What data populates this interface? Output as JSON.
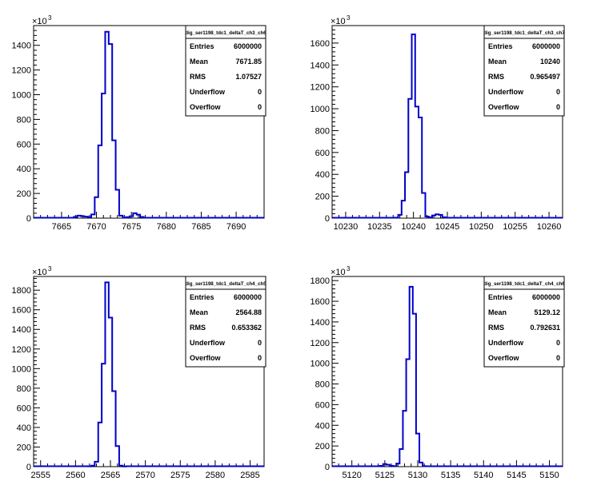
{
  "chart_data": [
    {
      "type": "bar",
      "title": "",
      "xlabel": "",
      "ylabel": "",
      "exponent_label": "×10³",
      "color": "#0000cc",
      "xlim": [
        7661,
        7694
      ],
      "ylim": [
        0,
        1560
      ],
      "xticks": [
        7665,
        7670,
        7675,
        7680,
        7685,
        7690
      ],
      "yticks": [
        0,
        200,
        400,
        600,
        800,
        1000,
        1200,
        1400
      ],
      "bin_width": 0.5,
      "x": [
        7666.5,
        7667.0,
        7667.5,
        7668.0,
        7668.5,
        7669.0,
        7669.5,
        7670.0,
        7670.5,
        7671.0,
        7671.5,
        7672.0,
        7672.5,
        7673.0,
        7673.5,
        7674.0,
        7674.5,
        7675.0,
        7675.5,
        7676.0,
        7676.5
      ],
      "values": [
        3,
        10,
        20,
        16,
        12,
        8,
        30,
        170,
        590,
        1010,
        1510,
        1410,
        630,
        230,
        20,
        5,
        8,
        15,
        40,
        28,
        10
      ],
      "stats": {
        "name": "dig_ser1198_tdc1_deltaT_ch3_ch6",
        "rows": [
          {
            "label": "Entries",
            "value": "6000000"
          },
          {
            "label": "Mean",
            "value": "7671.85"
          },
          {
            "label": "RMS",
            "value": "1.07527"
          },
          {
            "label": "Underflow",
            "value": "0"
          },
          {
            "label": "Overflow",
            "value": "0"
          }
        ]
      }
    },
    {
      "type": "bar",
      "title": "",
      "xlabel": "",
      "ylabel": "",
      "exponent_label": "×10³",
      "color": "#0000cc",
      "xlim": [
        10228,
        10262
      ],
      "ylim": [
        0,
        1760
      ],
      "xticks": [
        10230,
        10235,
        10240,
        10245,
        10250,
        10255,
        10260
      ],
      "yticks": [
        0,
        200,
        400,
        600,
        800,
        1000,
        1200,
        1400,
        1600
      ],
      "bin_width": 0.5,
      "x": [
        10237.5,
        10238.0,
        10238.5,
        10239.0,
        10239.5,
        10240.0,
        10240.5,
        10241.0,
        10241.5,
        10242.0,
        10242.5,
        10243.0,
        10243.5,
        10244.0,
        10244.5
      ],
      "values": [
        5,
        30,
        160,
        420,
        1090,
        1680,
        1020,
        920,
        230,
        15,
        8,
        25,
        35,
        30,
        8
      ],
      "stats": {
        "name": "dig_ser1198_tdc1_deltaT_ch3_ch7",
        "rows": [
          {
            "label": "Entries",
            "value": "6000000"
          },
          {
            "label": "Mean",
            "value": "10240"
          },
          {
            "label": "RMS",
            "value": "0.965497"
          },
          {
            "label": "Underflow",
            "value": "0"
          },
          {
            "label": "Overflow",
            "value": "0"
          }
        ]
      }
    },
    {
      "type": "bar",
      "title": "",
      "xlabel": "",
      "ylabel": "",
      "exponent_label": "×10³",
      "color": "#0000cc",
      "xlim": [
        2554,
        2587
      ],
      "ylim": [
        0,
        1940
      ],
      "xticks": [
        2555,
        2560,
        2565,
        2570,
        2575,
        2580,
        2585
      ],
      "yticks": [
        0,
        200,
        400,
        600,
        800,
        1000,
        1200,
        1400,
        1600,
        1800
      ],
      "bin_width": 0.5,
      "x": [
        2562.0,
        2562.5,
        2563.0,
        2563.5,
        2564.0,
        2564.5,
        2565.0,
        2565.5,
        2566.0,
        2566.5,
        2567.0
      ],
      "values": [
        3,
        10,
        50,
        450,
        1050,
        1880,
        1520,
        770,
        210,
        10,
        2
      ],
      "stats": {
        "name": "dig_ser1198_tdc1_deltaT_ch4_ch5",
        "rows": [
          {
            "label": "Entries",
            "value": "6000000"
          },
          {
            "label": "Mean",
            "value": "2564.88"
          },
          {
            "label": "RMS",
            "value": "0.653362"
          },
          {
            "label": "Underflow",
            "value": "0"
          },
          {
            "label": "Overflow",
            "value": "0"
          }
        ]
      }
    },
    {
      "type": "bar",
      "title": "",
      "xlabel": "",
      "ylabel": "",
      "exponent_label": "×10³",
      "color": "#0000cc",
      "xlim": [
        5117,
        5152
      ],
      "ylim": [
        0,
        1840
      ],
      "xticks": [
        5120,
        5125,
        5130,
        5135,
        5140,
        5145,
        5150
      ],
      "yticks": [
        0,
        200,
        400,
        600,
        800,
        1000,
        1200,
        1400,
        1600,
        1800
      ],
      "bin_width": 0.5,
      "x": [
        5124.5,
        5125.0,
        5125.5,
        5126.0,
        5126.5,
        5127.0,
        5127.5,
        5128.0,
        5128.5,
        5129.0,
        5129.5,
        5130.0,
        5130.5,
        5131.0
      ],
      "values": [
        8,
        25,
        18,
        8,
        5,
        30,
        170,
        540,
        1040,
        1740,
        1480,
        320,
        40,
        5
      ],
      "stats": {
        "name": "dig_ser1198_tdc1_deltaT_ch4_ch6",
        "rows": [
          {
            "label": "Entries",
            "value": "6000000"
          },
          {
            "label": "Mean",
            "value": "5129.12"
          },
          {
            "label": "RMS",
            "value": "0.792631"
          },
          {
            "label": "Underflow",
            "value": "0"
          },
          {
            "label": "Overflow",
            "value": "0"
          }
        ]
      }
    }
  ]
}
